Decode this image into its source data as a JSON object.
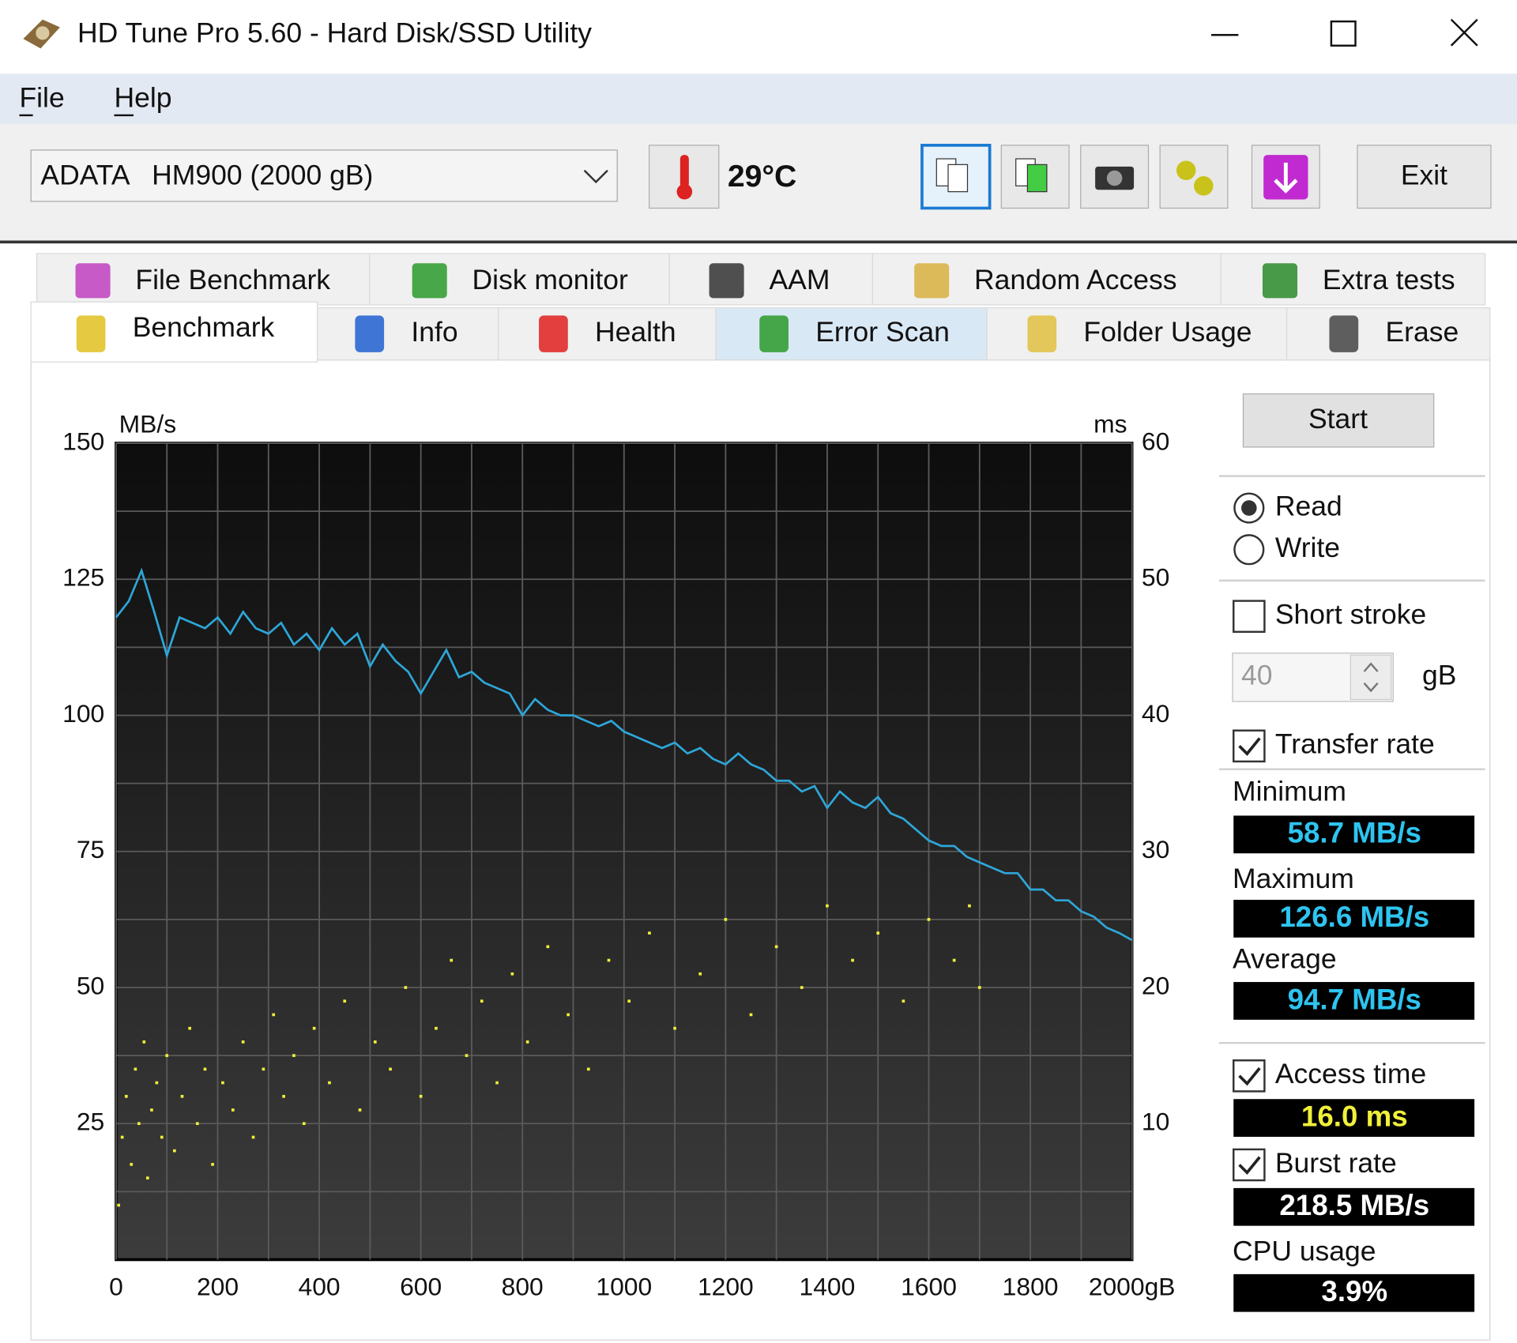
{
  "window": {
    "title": "HD Tune Pro 5.60 - Hard Disk/SSD Utility"
  },
  "menu": [
    "File",
    "Help"
  ],
  "toolbar": {
    "drive": "ADATA   HM900 (2000 gB)",
    "temperature": "29°C",
    "exit": "Exit"
  },
  "tabs": {
    "row1": [
      "File Benchmark",
      "Disk monitor",
      "AAM",
      "Random Access",
      "Extra tests"
    ],
    "row2": [
      "Benchmark",
      "Info",
      "Health",
      "Error Scan",
      "Folder Usage",
      "Erase"
    ]
  },
  "chart_data": {
    "type": "line",
    "ylabel": "MB/s",
    "y2label": "ms",
    "xlim": [
      0,
      2000
    ],
    "xticks": [
      0,
      200,
      400,
      600,
      800,
      1000,
      1200,
      1400,
      1600,
      1800,
      {
        "value": 2000,
        "label": "2000gB"
      }
    ],
    "ylim": [
      0,
      150
    ],
    "yticks": [
      25,
      50,
      75,
      100,
      125,
      150
    ],
    "y2lim": [
      0,
      60
    ],
    "y2ticks": [
      10,
      20,
      30,
      40,
      50,
      60
    ],
    "grid": true,
    "series": [
      {
        "type": "line",
        "color": "#2ea6d8",
        "x": [
          0,
          25,
          50,
          75,
          100,
          125,
          150,
          175,
          200,
          225,
          250,
          275,
          300,
          325,
          350,
          375,
          400,
          425,
          450,
          475,
          500,
          525,
          550,
          575,
          600,
          625,
          650,
          675,
          700,
          725,
          750,
          775,
          800,
          825,
          850,
          875,
          900,
          925,
          950,
          975,
          1000,
          1025,
          1050,
          1075,
          1100,
          1125,
          1150,
          1175,
          1200,
          1225,
          1250,
          1275,
          1300,
          1325,
          1350,
          1375,
          1400,
          1425,
          1450,
          1475,
          1500,
          1525,
          1550,
          1575,
          1600,
          1625,
          1650,
          1675,
          1700,
          1725,
          1750,
          1775,
          1800,
          1825,
          1850,
          1875,
          1900,
          1925,
          1950,
          1975,
          2000
        ],
        "values": [
          118,
          121,
          126.6,
          119,
          111,
          118,
          117,
          116,
          118,
          115,
          119,
          116,
          115,
          117,
          113,
          115,
          112,
          116,
          113,
          115,
          109,
          113,
          110,
          108,
          104,
          108,
          112,
          107,
          108,
          106,
          105,
          104,
          100,
          103,
          101,
          100,
          100,
          99,
          98,
          99,
          97,
          96,
          95,
          94,
          95,
          93,
          94,
          92,
          91,
          93,
          91,
          90,
          88,
          88,
          86,
          87,
          83,
          86,
          84,
          83,
          85,
          82,
          81,
          79,
          77,
          76,
          76,
          74,
          73,
          72,
          71,
          71,
          68,
          68,
          66,
          66,
          64,
          63,
          61,
          60,
          58.7
        ]
      },
      {
        "type": "scatter",
        "axis": "y2",
        "color": "#f0f03a",
        "x": [
          5,
          12,
          20,
          30,
          38,
          45,
          55,
          62,
          70,
          80,
          90,
          100,
          115,
          130,
          145,
          160,
          175,
          190,
          210,
          230,
          250,
          270,
          290,
          310,
          330,
          350,
          370,
          390,
          420,
          450,
          480,
          510,
          540,
          570,
          600,
          630,
          660,
          690,
          720,
          750,
          780,
          810,
          850,
          890,
          930,
          970,
          1010,
          1050,
          1100,
          1150,
          1200,
          1250,
          1300,
          1350,
          1400,
          1450,
          1500,
          1550,
          1600,
          1650,
          1680,
          1700
        ],
        "values": [
          4,
          9,
          12,
          7,
          14,
          10,
          16,
          6,
          11,
          13,
          9,
          15,
          8,
          12,
          17,
          10,
          14,
          7,
          13,
          11,
          16,
          9,
          14,
          18,
          12,
          15,
          10,
          17,
          13,
          19,
          11,
          16,
          14,
          20,
          12,
          17,
          22,
          15,
          19,
          13,
          21,
          16,
          23,
          18,
          14,
          22,
          19,
          24,
          17,
          21,
          25,
          18,
          23,
          20,
          26,
          22,
          24,
          19,
          25,
          22,
          26,
          20
        ]
      }
    ]
  },
  "panel": {
    "start": "Start",
    "read": {
      "label": "Read",
      "selected": true
    },
    "write": {
      "label": "Write",
      "selected": false
    },
    "short_stroke": {
      "label": "Short stroke",
      "checked": false
    },
    "stroke_size": 40,
    "stroke_unit": "gB",
    "transfer_rate": {
      "label": "Transfer rate",
      "checked": true
    },
    "minimum": {
      "label": "Minimum",
      "value": "58.7 MB/s"
    },
    "maximum": {
      "label": "Maximum",
      "value": "126.6 MB/s"
    },
    "average": {
      "label": "Average",
      "value": "94.7 MB/s"
    },
    "access_time": {
      "label": "Access time",
      "checked": true,
      "value": "16.0 ms"
    },
    "burst_rate": {
      "label": "Burst rate",
      "checked": true,
      "value": "218.5 MB/s"
    },
    "cpu_usage": {
      "label": "CPU usage",
      "value": "3.9%"
    }
  }
}
